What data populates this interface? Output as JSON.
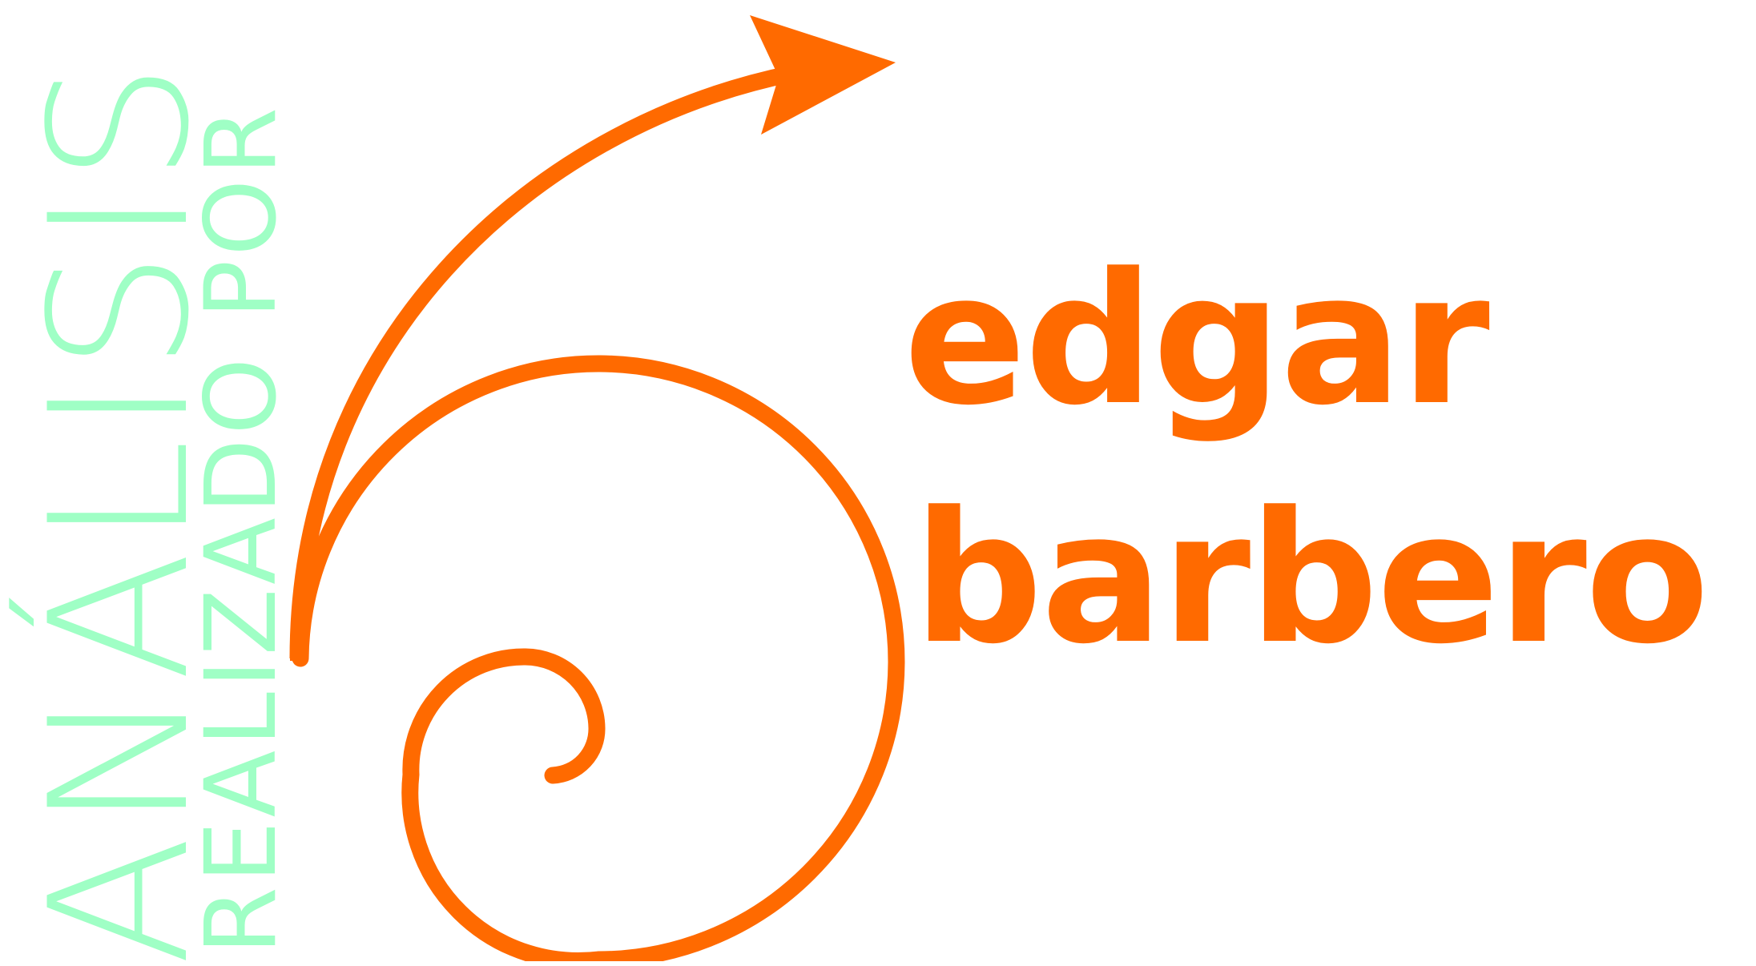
{
  "logo": {
    "vertical_title": "ANÁLISIS",
    "vertical_subtitle": "REALIZADO POR",
    "name_first": "edgar",
    "name_last": "barbero"
  },
  "colors": {
    "mint": "#9fffc5",
    "orange": "#ff6a00",
    "background": "#ffffff"
  },
  "icons": {
    "spiral": "spiral-arrow-icon"
  }
}
